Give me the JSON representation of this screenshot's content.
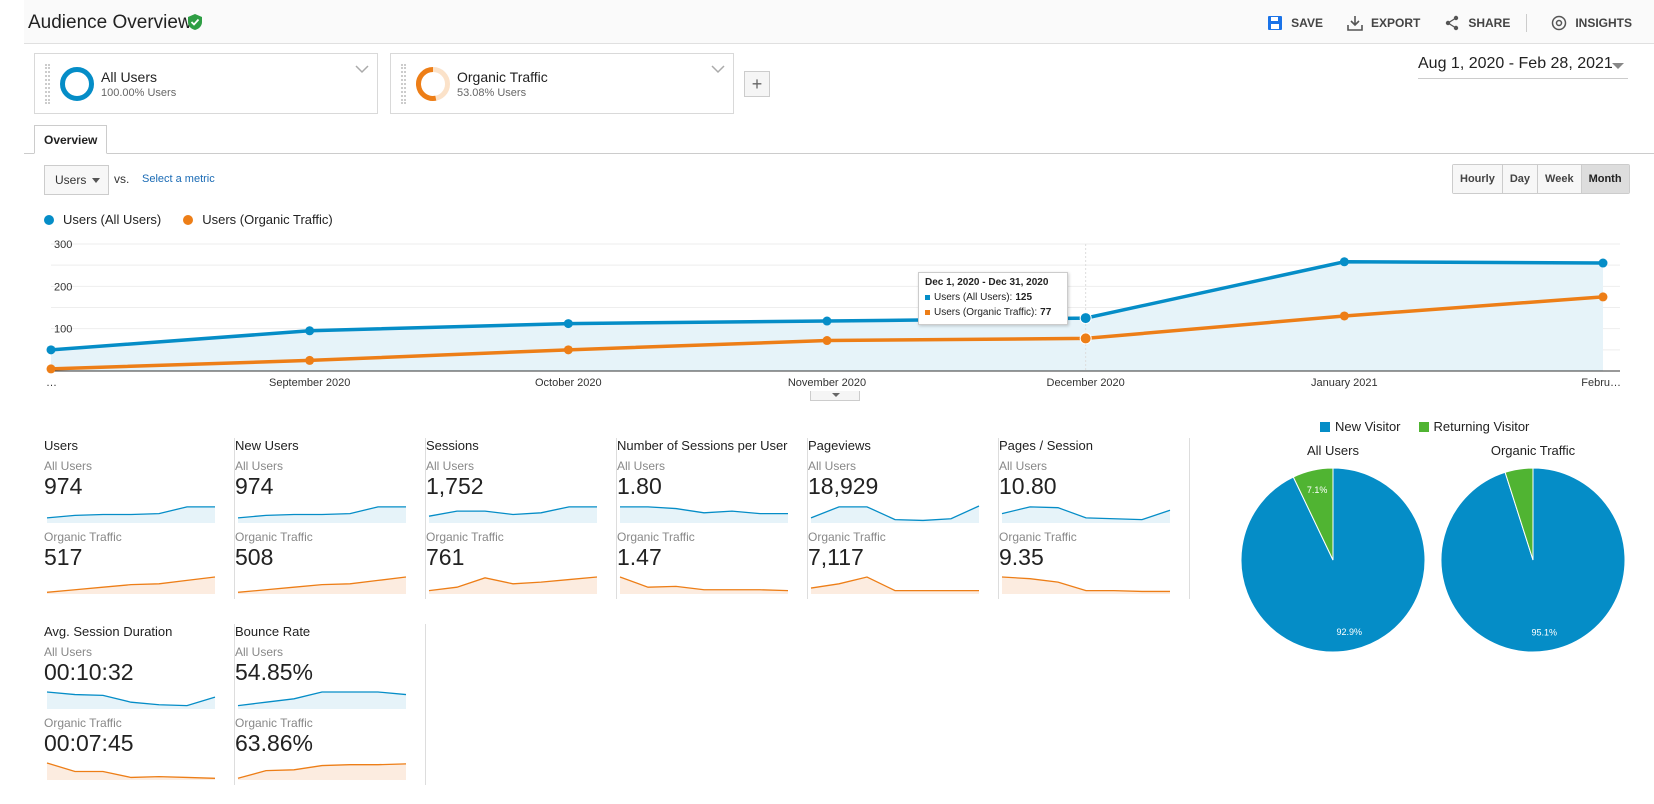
{
  "header": {
    "title": "Audience Overview",
    "actions": [
      {
        "label": "SAVE",
        "icon": "save-icon"
      },
      {
        "label": "EXPORT",
        "icon": "export-icon"
      },
      {
        "label": "SHARE",
        "icon": "share-icon"
      },
      {
        "label": "INSIGHTS",
        "icon": "insights-icon"
      }
    ]
  },
  "segments": [
    {
      "name": "All Users",
      "sub": "100.00% Users",
      "color": "#058dc7",
      "share": 1.0
    },
    {
      "name": "Organic Traffic",
      "sub": "53.08% Users",
      "color": "#ed7e17",
      "share": 0.5308
    }
  ],
  "add_segment_label": "+",
  "date_range": "Aug 1, 2020 - Feb 28, 2021",
  "tabs": [
    {
      "label": "Overview"
    }
  ],
  "metric_selector": {
    "value": "Users",
    "vs": "vs.",
    "select_metric": "Select a metric"
  },
  "granularity": [
    {
      "label": "Hourly",
      "active": false
    },
    {
      "label": "Day",
      "active": false
    },
    {
      "label": "Week",
      "active": false
    },
    {
      "label": "Month",
      "active": true
    }
  ],
  "legend": [
    {
      "name": "Users (All Users)",
      "color": "#058dc7"
    },
    {
      "name": "Users (Organic Traffic)",
      "color": "#ed7e17"
    }
  ],
  "tooltip": {
    "title": "Dec 1, 2020 - Dec 31, 2020",
    "rows": [
      {
        "label": "Users (All Users):",
        "value": "125",
        "color": "#058dc7"
      },
      {
        "label": "Users (Organic Traffic):",
        "value": "77",
        "color": "#ed7e17"
      }
    ]
  },
  "chart_data": [
    {
      "type": "line",
      "x": [
        "…",
        "September 2020",
        "October 2020",
        "November 2020",
        "December 2020",
        "January 2021",
        "Febru…"
      ],
      "series": [
        {
          "name": "Users (All Users)",
          "color": "#058dc7",
          "values": [
            50,
            95,
            112,
            118,
            125,
            258,
            255
          ]
        },
        {
          "name": "Users (Organic Traffic)",
          "color": "#ed7e17",
          "values": [
            5,
            25,
            50,
            72,
            77,
            130,
            175
          ]
        }
      ],
      "yticks": [
        "100",
        "200",
        "300"
      ],
      "ylim": [
        0,
        300
      ],
      "area_fill": "#e6f3f9",
      "grid": true
    },
    {
      "type": "pie",
      "title": "All Users",
      "slices": [
        {
          "label": "New Visitor",
          "value": 92.9,
          "text": "92.9%",
          "color": "#058dc7"
        },
        {
          "label": "Returning Visitor",
          "value": 7.1,
          "text": "7.1%",
          "color": "#50b432"
        }
      ]
    },
    {
      "type": "pie",
      "title": "Organic Traffic",
      "slices": [
        {
          "label": "New Visitor",
          "value": 95.1,
          "text": "95.1%",
          "color": "#058dc7"
        },
        {
          "label": "Returning Visitor",
          "value": 4.9,
          "text": "",
          "color": "#50b432"
        }
      ]
    }
  ],
  "pie_legend": [
    {
      "label": "New Visitor",
      "color": "#058dc7"
    },
    {
      "label": "Returning Visitor",
      "color": "#50b432"
    }
  ],
  "metrics": [
    {
      "title": "Users",
      "seg1": "All Users",
      "val1": "974",
      "seg2": "Organic Traffic",
      "val2": "517",
      "spark1": [
        0.3,
        0.45,
        0.5,
        0.5,
        0.55,
        0.95,
        0.95
      ],
      "spark2": [
        0.1,
        0.25,
        0.4,
        0.55,
        0.6,
        0.8,
        1.0
      ]
    },
    {
      "title": "New Users",
      "seg1": "All Users",
      "val1": "974",
      "seg2": "Organic Traffic",
      "val2": "508",
      "spark1": [
        0.3,
        0.45,
        0.5,
        0.5,
        0.55,
        0.95,
        0.95
      ],
      "spark2": [
        0.1,
        0.25,
        0.4,
        0.55,
        0.6,
        0.8,
        1.0
      ]
    },
    {
      "title": "Sessions",
      "seg1": "All Users",
      "val1": "1,752",
      "seg2": "Organic Traffic",
      "val2": "761",
      "spark1": [
        0.4,
        0.7,
        0.7,
        0.5,
        0.6,
        0.95,
        0.95
      ],
      "spark2": [
        0.2,
        0.4,
        0.95,
        0.6,
        0.7,
        0.85,
        1.0
      ]
    },
    {
      "title": "Number of Sessions per User",
      "seg1": "All Users",
      "val1": "1.80",
      "seg2": "Organic Traffic",
      "val2": "1.47",
      "spark1": [
        0.95,
        0.95,
        0.85,
        0.6,
        0.7,
        0.55,
        0.55
      ],
      "spark2": [
        1.0,
        0.4,
        0.45,
        0.25,
        0.25,
        0.25,
        0.2
      ]
    },
    {
      "title": "Pageviews",
      "seg1": "All Users",
      "val1": "18,929",
      "seg2": "Organic Traffic",
      "val2": "7,117",
      "spark1": [
        0.3,
        0.95,
        0.95,
        0.2,
        0.15,
        0.25,
        1.0
      ],
      "spark2": [
        0.35,
        0.6,
        1.0,
        0.2,
        0.2,
        0.2,
        0.2
      ]
    },
    {
      "title": "Pages / Session",
      "seg1": "All Users",
      "val1": "10.80",
      "seg2": "Organic Traffic",
      "val2": "9.35",
      "spark1": [
        0.55,
        0.95,
        0.9,
        0.3,
        0.25,
        0.2,
        0.75
      ],
      "spark2": [
        1.0,
        0.9,
        0.7,
        0.2,
        0.2,
        0.15,
        0.15
      ]
    },
    {
      "title": "Avg. Session Duration",
      "seg1": "All Users",
      "val1": "00:10:32",
      "seg2": "Organic Traffic",
      "val2": "00:07:45",
      "spark1": [
        1.0,
        0.85,
        0.8,
        0.4,
        0.25,
        0.2,
        0.7
      ],
      "spark2": [
        1.0,
        0.5,
        0.5,
        0.15,
        0.2,
        0.15,
        0.1
      ]
    },
    {
      "title": "Bounce Rate",
      "seg1": "All Users",
      "val1": "54.85%",
      "seg2": "Organic Traffic",
      "val2": "63.86%",
      "spark1": [
        0.2,
        0.4,
        0.6,
        1.0,
        1.0,
        1.0,
        0.85
      ],
      "spark2": [
        0.1,
        0.55,
        0.6,
        0.85,
        0.9,
        0.9,
        0.95
      ]
    }
  ]
}
